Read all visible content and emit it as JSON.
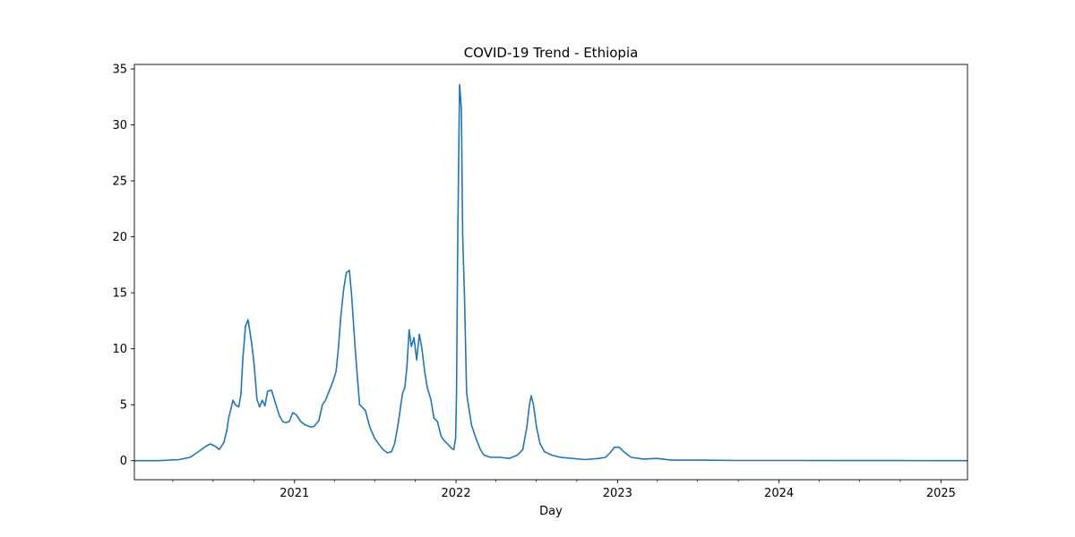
{
  "chart_data": {
    "type": "line",
    "title": "COVID-19 Trend - Ethiopia",
    "xlabel": "Day",
    "ylabel": "",
    "x_type": "date",
    "xlim": [
      "2020-01-05",
      "2025-03-02"
    ],
    "ylim": [
      -1.7,
      35.4
    ],
    "x_ticks": [
      {
        "value": "2021-01-01",
        "label": "2021"
      },
      {
        "value": "2022-01-01",
        "label": "2022"
      },
      {
        "value": "2023-01-01",
        "label": "2023"
      },
      {
        "value": "2024-01-01",
        "label": "2024"
      },
      {
        "value": "2025-01-01",
        "label": "2025"
      }
    ],
    "y_ticks": [
      0,
      5,
      10,
      15,
      20,
      25,
      30,
      35
    ],
    "grid": false,
    "legend": "none",
    "line_color": "#1f77b4",
    "series": [
      {
        "x": [
          "2020-01-05",
          "2020-03-01",
          "2020-04-15",
          "2020-05-10",
          "2020-06-01",
          "2020-06-15",
          "2020-06-25",
          "2020-07-05",
          "2020-07-15",
          "2020-07-25",
          "2020-08-01",
          "2020-08-05",
          "2020-08-10",
          "2020-08-15",
          "2020-08-20",
          "2020-08-28",
          "2020-09-02",
          "2020-09-06",
          "2020-09-12",
          "2020-09-18",
          "2020-09-26",
          "2020-10-02",
          "2020-10-08",
          "2020-10-14",
          "2020-10-20",
          "2020-10-26",
          "2020-11-01",
          "2020-11-10",
          "2020-11-20",
          "2020-11-28",
          "2020-12-05",
          "2020-12-12",
          "2020-12-20",
          "2020-12-28",
          "2021-01-05",
          "2021-01-15",
          "2021-01-25",
          "2021-02-01",
          "2021-02-08",
          "2021-02-15",
          "2021-02-25",
          "2021-03-05",
          "2021-03-12",
          "2021-03-20",
          "2021-03-28",
          "2021-04-05",
          "2021-04-10",
          "2021-04-16",
          "2021-04-22",
          "2021-04-28",
          "2021-05-05",
          "2021-05-10",
          "2021-05-18",
          "2021-05-28",
          "2021-06-10",
          "2021-06-20",
          "2021-07-01",
          "2021-07-10",
          "2021-07-20",
          "2021-07-30",
          "2021-08-08",
          "2021-08-15",
          "2021-08-22",
          "2021-08-28",
          "2021-09-02",
          "2021-09-07",
          "2021-09-12",
          "2021-09-17",
          "2021-09-22",
          "2021-09-28",
          "2021-10-04",
          "2021-10-10",
          "2021-10-16",
          "2021-10-22",
          "2021-10-28",
          "2021-11-05",
          "2021-11-12",
          "2021-11-20",
          "2021-11-28",
          "2021-12-05",
          "2021-12-15",
          "2021-12-22",
          "2021-12-27",
          "2021-12-31",
          "2022-01-02",
          "2022-01-05",
          "2022-01-09",
          "2022-01-13",
          "2022-01-16",
          "2022-01-20",
          "2022-01-25",
          "2022-02-05",
          "2022-02-15",
          "2022-02-25",
          "2022-03-05",
          "2022-03-20",
          "2022-04-10",
          "2022-05-01",
          "2022-05-20",
          "2022-06-01",
          "2022-06-10",
          "2022-06-16",
          "2022-06-20",
          "2022-06-25",
          "2022-07-02",
          "2022-07-10",
          "2022-07-20",
          "2022-08-05",
          "2022-08-25",
          "2022-09-20",
          "2022-10-20",
          "2022-11-20",
          "2022-12-05",
          "2022-12-15",
          "2022-12-25",
          "2023-01-05",
          "2023-01-15",
          "2023-02-01",
          "2023-03-01",
          "2023-04-01",
          "2023-05-01",
          "2023-07-01",
          "2023-10-01",
          "2024-02-01",
          "2024-06-01",
          "2024-10-01",
          "2025-03-02"
        ],
        "y": [
          0,
          0,
          0.1,
          0.3,
          0.9,
          1.3,
          1.5,
          1.3,
          1.0,
          1.6,
          2.7,
          3.8,
          4.6,
          5.4,
          5.0,
          4.8,
          6.0,
          9.0,
          12.0,
          12.6,
          10.5,
          8.5,
          5.5,
          4.8,
          5.4,
          4.9,
          6.2,
          6.3,
          5.0,
          4.0,
          3.5,
          3.4,
          3.5,
          4.3,
          4.1,
          3.5,
          3.2,
          3.1,
          3.0,
          3.1,
          3.6,
          5.0,
          5.4,
          6.2,
          7.0,
          8.0,
          10.0,
          13.0,
          15.3,
          16.8,
          17.0,
          14.8,
          10.0,
          5.0,
          4.5,
          3.0,
          2.0,
          1.5,
          1.0,
          0.7,
          0.8,
          1.5,
          3.0,
          4.6,
          6.0,
          6.5,
          8.3,
          11.7,
          10.2,
          11.0,
          9.0,
          11.3,
          10.0,
          8.0,
          6.5,
          5.5,
          3.8,
          3.5,
          2.2,
          1.8,
          1.4,
          1.1,
          1.0,
          2.0,
          6.0,
          20.0,
          33.6,
          31.5,
          20.0,
          15.0,
          6.0,
          3.2,
          2.0,
          1.0,
          0.5,
          0.3,
          0.3,
          0.2,
          0.5,
          1.0,
          3.0,
          5.0,
          5.8,
          5.0,
          3.0,
          1.5,
          0.8,
          0.5,
          0.3,
          0.2,
          0.1,
          0.2,
          0.3,
          0.7,
          1.2,
          1.2,
          0.8,
          0.3,
          0.15,
          0.2,
          0.05,
          0.05,
          0.02,
          0.02,
          0.01,
          0.01,
          0
        ]
      }
    ]
  }
}
